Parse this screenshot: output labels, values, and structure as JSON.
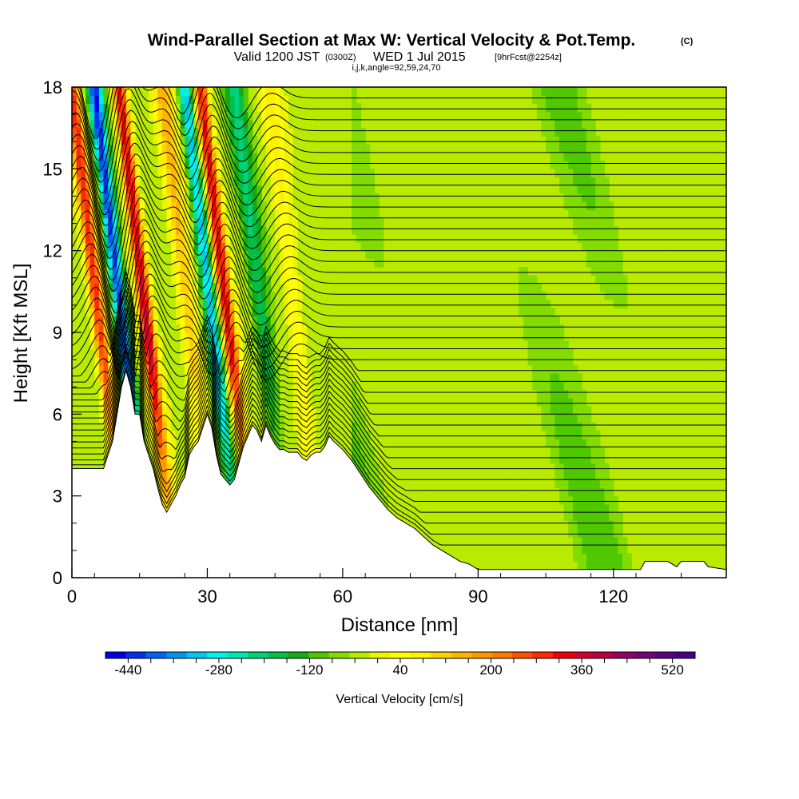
{
  "title": {
    "main": "Wind-Parallel Section at Max W: Vertical Velocity & Pot.Temp.",
    "copyright": "(C)",
    "valid_a": "Valid 1200 JST",
    "valid_utc": "(0300Z)",
    "valid_b": "WED 1 Jul 2015",
    "forecast": "[9hrFcst@2254z]",
    "params": "i,j,k,angle=92,59,24,70"
  },
  "chart_data": {
    "type": "heatmap",
    "xlabel": "Distance [nm]",
    "ylabel": "Height [Kft MSL]",
    "xlim": [
      0,
      145
    ],
    "ylim": [
      0,
      18
    ],
    "x_ticks": [
      0,
      30,
      60,
      90,
      120
    ],
    "y_ticks": [
      0,
      3,
      6,
      9,
      12,
      15,
      18
    ],
    "colorbar": {
      "label": "Vertical Velocity [cm/s]",
      "min": -480,
      "max": 560,
      "step": 40,
      "tick_labels": [
        "-440",
        "-280",
        "-120",
        "40",
        "200",
        "360",
        "520"
      ],
      "colors": [
        "#0000e6",
        "#0032f0",
        "#0064f0",
        "#0096f0",
        "#00c8f0",
        "#00f0f0",
        "#00e6b4",
        "#00d278",
        "#00be46",
        "#14aa14",
        "#50c800",
        "#82dc00",
        "#b9eb00",
        "#ebf500",
        "#ffff00",
        "#fff000",
        "#ffd200",
        "#ffb400",
        "#ff9600",
        "#ff7800",
        "#ff5000",
        "#ff2800",
        "#f00000",
        "#d20032",
        "#b40046",
        "#960064",
        "#780078",
        "#5a0082",
        "#460087"
      ]
    },
    "updrafts": [
      {
        "x": 7,
        "w_max": 360
      },
      {
        "x": 17.5,
        "w_max": 440
      },
      {
        "x": 27,
        "w_max": 200
      },
      {
        "x": 35.5,
        "w_max": 400
      },
      {
        "x": 50.5,
        "w_max": 120
      }
    ],
    "downdrafts": [
      {
        "x": 12,
        "w_min": -440
      },
      {
        "x": 32,
        "w_min": -320
      },
      {
        "x": 43,
        "w_min": -160
      }
    ],
    "terrain": {
      "x": [
        0,
        7,
        8,
        9,
        10,
        11,
        12,
        13,
        14,
        15,
        16,
        17,
        18,
        19,
        20,
        21,
        22,
        23,
        24,
        25,
        26,
        27,
        28,
        29,
        30,
        31,
        32,
        33,
        34,
        35,
        36,
        37,
        38,
        39,
        40,
        41,
        42,
        43,
        44,
        45,
        46,
        47,
        48,
        49,
        50,
        51,
        52,
        53,
        54,
        55,
        56,
        57,
        58,
        60,
        62,
        64,
        66,
        68,
        70,
        72,
        74,
        76,
        78,
        80,
        82,
        84,
        86,
        88,
        90,
        95,
        100,
        110,
        120,
        126,
        127,
        132,
        134,
        135,
        138,
        140,
        141,
        145
      ],
      "height": [
        4.0,
        4.0,
        4.5,
        5.0,
        6.0,
        7.0,
        7.6,
        7.0,
        6.0,
        6.0,
        5.0,
        4.5,
        4.0,
        3.3,
        2.7,
        2.4,
        2.7,
        3.0,
        3.4,
        3.7,
        4.5,
        4.8,
        5.0,
        5.5,
        6.0,
        5.5,
        4.5,
        3.8,
        3.6,
        3.4,
        3.6,
        4.2,
        4.8,
        5.2,
        5.6,
        5.4,
        5.0,
        5.6,
        5.2,
        4.9,
        4.7,
        4.7,
        4.6,
        4.6,
        4.6,
        4.4,
        4.3,
        4.5,
        4.6,
        4.6,
        4.8,
        5.2,
        5.0,
        4.7,
        4.3,
        3.8,
        3.3,
        2.9,
        2.5,
        2.2,
        2.0,
        1.8,
        1.5,
        1.2,
        1.0,
        0.8,
        0.6,
        0.5,
        0.3,
        0.3,
        0.3,
        0.3,
        0.3,
        0.3,
        0.6,
        0.6,
        0.4,
        0.6,
        0.6,
        0.6,
        0.4,
        0.3
      ]
    },
    "theta_contours": {
      "count": 42,
      "base_height": 1.2,
      "interval": 0.4
    }
  }
}
